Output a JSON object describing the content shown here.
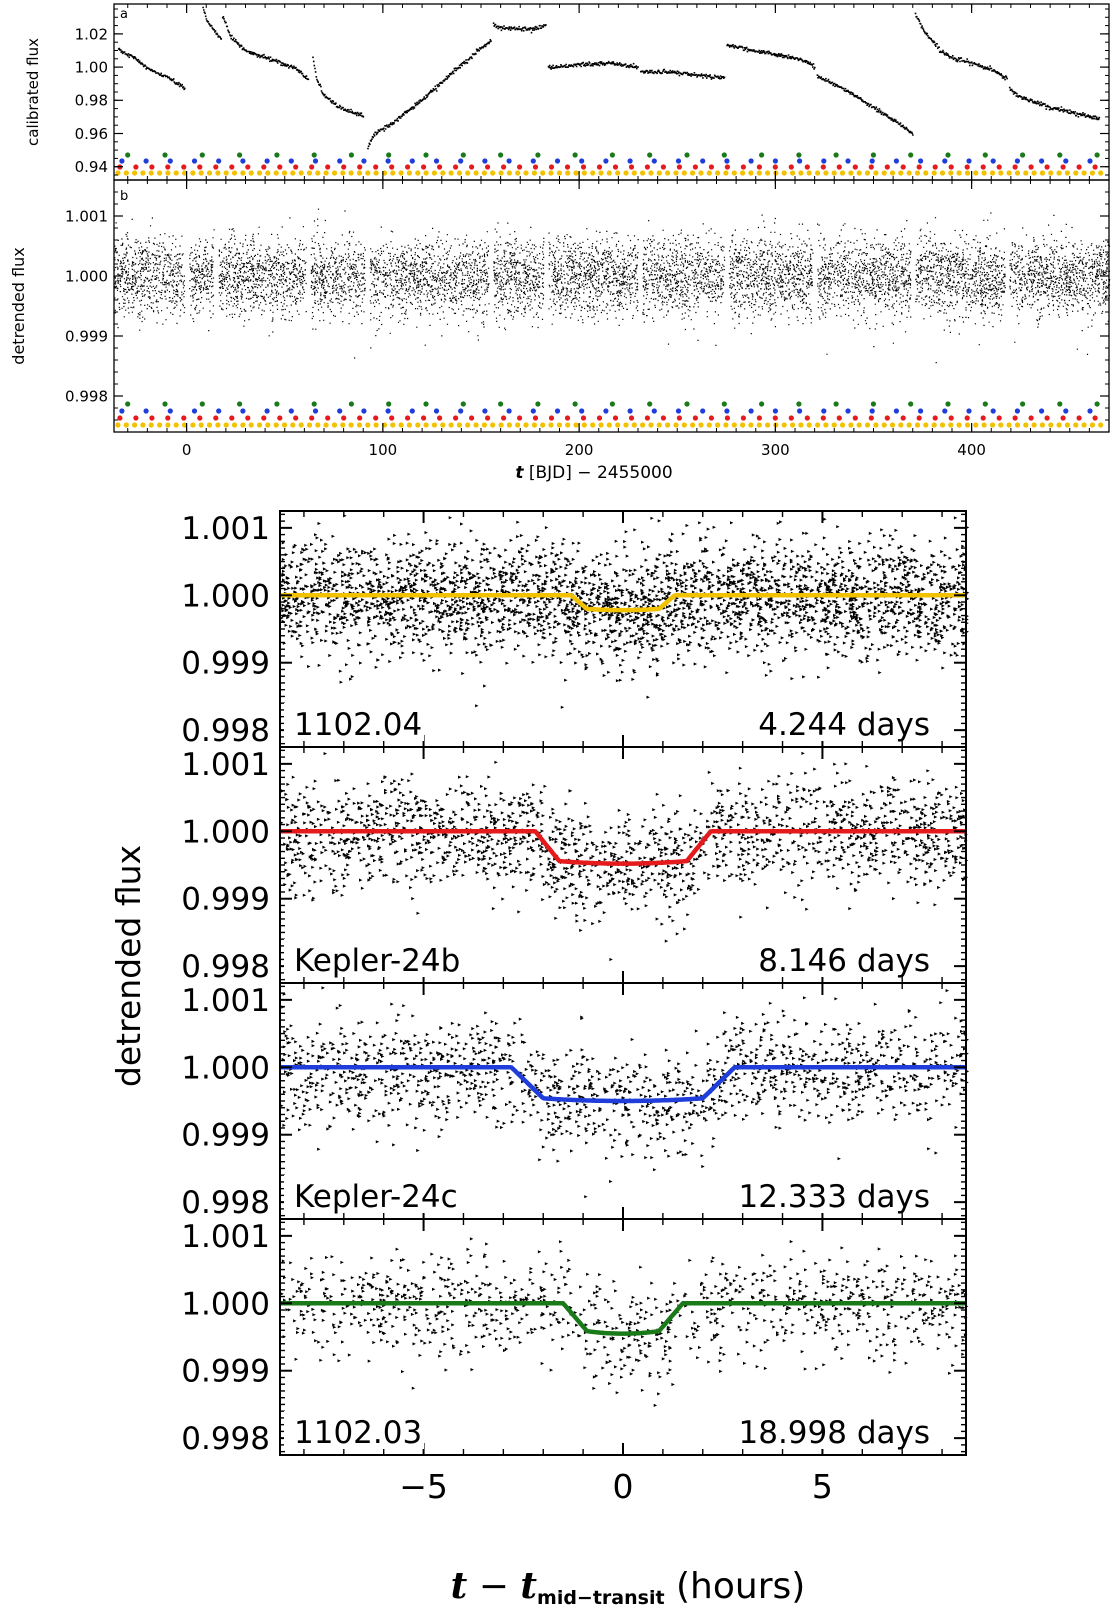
{
  "figure": {
    "top": {
      "panel_a": {
        "label": "a",
        "ylabel": "calibrated flux",
        "ylim": [
          0.932,
          1.038
        ],
        "yticks": [
          0.94,
          0.96,
          0.98,
          1.0,
          1.02
        ],
        "ytick_labels": [
          "0.94",
          "0.96",
          "0.98",
          "1.00",
          "1.02"
        ]
      },
      "panel_b": {
        "label": "b",
        "ylabel": "detrended flux",
        "ylim": [
          0.9974,
          1.0016
        ],
        "yticks": [
          0.998,
          0.999,
          1.0,
          1.001
        ],
        "ytick_labels": [
          "0.998",
          "0.999",
          "1.000",
          "1.001"
        ]
      },
      "xlim": [
        -37,
        470
      ],
      "xticks": [
        0,
        100,
        200,
        300,
        400
      ],
      "xtick_labels": [
        "0",
        "100",
        "200",
        "300",
        "400"
      ],
      "xlabel_t": "t",
      "xlabel_rest": "[BJD] − 2455000"
    },
    "bottom": {
      "ylabel": "detrended flux",
      "xlabel_t1": "t",
      "xlabel_minus": "−",
      "xlabel_t2": "t",
      "xlabel_sub": "mid−transit",
      "xlabel_units": "(hours)",
      "xlim": [
        -8.6,
        8.6
      ],
      "xticks": [
        -5,
        0,
        5
      ],
      "xtick_labels": [
        "−5",
        "0",
        "5"
      ],
      "ylim": [
        0.99775,
        1.00125
      ],
      "yticks": [
        0.998,
        0.999,
        1.0,
        1.001
      ],
      "ytick_labels": [
        "0.998",
        "0.999",
        "1.000",
        "1.001"
      ]
    }
  },
  "chart_data": [
    {
      "type": "scatter",
      "panel": "a",
      "ylabel": "calibrated flux",
      "segments": [
        {
          "x": [
            -35,
            -27,
            -18,
            -8,
            -1
          ],
          "y": [
            1.011,
            1.006,
            0.998,
            0.993,
            0.987
          ]
        },
        {
          "x": [
            6,
            10,
            14,
            17,
            17.5
          ],
          "y": [
            1.045,
            1.028,
            1.022,
            1.018,
            1.017
          ]
        },
        {
          "x": [
            18,
            22,
            30,
            45,
            55,
            62
          ],
          "y": [
            1.031,
            1.019,
            1.01,
            1.004,
            1.0,
            0.993
          ]
        },
        {
          "x": [
            64,
            66,
            70,
            78,
            84,
            90
          ],
          "y": [
            1.006,
            0.993,
            0.983,
            0.976,
            0.973,
            0.971
          ]
        },
        {
          "x": [
            92,
            95,
            105,
            120,
            135,
            148,
            155
          ],
          "y": [
            0.952,
            0.96,
            0.967,
            0.981,
            0.997,
            1.01,
            1.017
          ]
        },
        {
          "x": [
            156,
            158,
            165,
            175,
            183
          ],
          "y": [
            1.026,
            1.024,
            1.024,
            1.023,
            1.025
          ]
        },
        {
          "x": [
            184,
            200,
            215,
            230
          ],
          "y": [
            1.0,
            1.002,
            1.003,
            1.0
          ]
        },
        {
          "x": [
            231,
            250,
            265,
            274
          ],
          "y": [
            0.998,
            0.997,
            0.995,
            0.994
          ]
        },
        {
          "x": [
            275,
            290,
            305,
            315,
            320
          ],
          "y": [
            1.014,
            1.01,
            1.007,
            1.004,
            1.0
          ]
        },
        {
          "x": [
            321,
            335,
            350,
            362,
            370
          ],
          "y": [
            0.995,
            0.987,
            0.976,
            0.967,
            0.96
          ]
        },
        {
          "x": [
            371,
            376,
            384,
            392,
            402,
            412,
            418
          ],
          "y": [
            1.032,
            1.021,
            1.01,
            1.005,
            1.002,
            0.998,
            0.993
          ]
        },
        {
          "x": [
            419,
            425,
            440,
            455,
            465
          ],
          "y": [
            0.987,
            0.982,
            0.976,
            0.972,
            0.969
          ]
        }
      ],
      "transit_markers": [
        {
          "planet": "1102.04",
          "color": "#f2c200",
          "period": 4.244,
          "epoch": -35.0
        },
        {
          "planet": "Kepler-24b",
          "color": "#e41a1c",
          "period": 8.146,
          "epoch": -34.0
        },
        {
          "planet": "Kepler-24c",
          "color": "#1f3ddb",
          "period": 12.333,
          "epoch": -33.0
        },
        {
          "planet": "1102.03",
          "color": "#1a7a1a",
          "period": 18.998,
          "epoch": -30.0
        }
      ]
    },
    {
      "type": "scatter",
      "panel": "b",
      "ylabel": "detrended flux",
      "baseline": 1.0,
      "noise_sigma": 0.00032,
      "gaps": [
        0,
        15,
        62,
        92,
        155,
        183,
        231,
        275,
        320,
        370,
        418
      ]
    },
    {
      "type": "scatter",
      "label": "1102.04",
      "period_label": "4.244 days",
      "color": "#f2c200",
      "depth": 0.00022,
      "t1": 1.3,
      "t2": 0.9,
      "noise_sigma": 0.00042,
      "n_points": 3200
    },
    {
      "type": "scatter",
      "label": "Kepler-24b",
      "period_label": "8.146 days",
      "color": "#e41a1c",
      "depth": 0.00048,
      "t1": 2.2,
      "t2": 1.6,
      "noise_sigma": 0.0004,
      "n_points": 1900
    },
    {
      "type": "scatter",
      "label": "Kepler-24c",
      "period_label": "12.333 days",
      "color": "#1f3ddb",
      "depth": 0.0005,
      "t1": 2.8,
      "t2": 2.0,
      "noise_sigma": 0.0004,
      "n_points": 1500
    },
    {
      "type": "scatter",
      "label": "1102.03",
      "period_label": "18.998 days",
      "color": "#1a7a1a",
      "depth": 0.00045,
      "t1": 1.5,
      "t2": 0.9,
      "noise_sigma": 0.0004,
      "n_points": 1050
    }
  ]
}
